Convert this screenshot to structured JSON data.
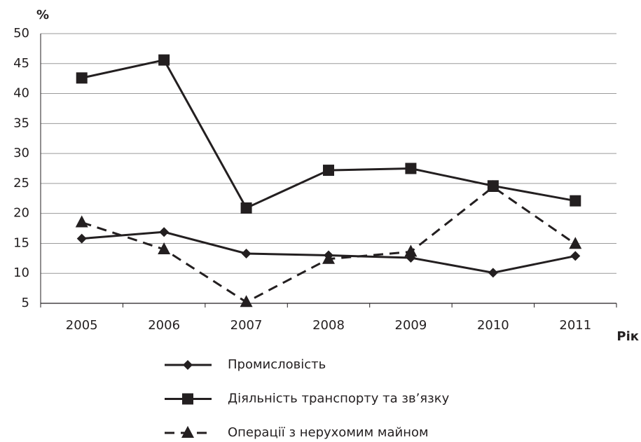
{
  "chart_data": {
    "type": "line",
    "y_axis_label": "%",
    "x_axis_label": "Рік",
    "categories": [
      "2005",
      "2006",
      "2007",
      "2008",
      "2009",
      "2010",
      "2011"
    ],
    "series": [
      {
        "name": "Промисловість",
        "color": "#231f20",
        "marker": "diamond",
        "dashed": false,
        "values": [
          15.8,
          16.9,
          13.3,
          13.0,
          12.6,
          10.1,
          12.9
        ]
      },
      {
        "name": "Діяльність транспорту та зв’язку",
        "color": "#231f20",
        "marker": "square",
        "dashed": false,
        "values": [
          42.6,
          45.6,
          20.9,
          27.2,
          27.5,
          24.6,
          22.1
        ]
      },
      {
        "name": "Операції з нерухомим майном",
        "color": "#231f20",
        "marker": "triangle",
        "dashed": true,
        "values": [
          18.5,
          14.0,
          5.2,
          12.4,
          13.6,
          24.4,
          14.9
        ]
      }
    ],
    "ylim": [
      5,
      50
    ],
    "yticks": [
      5,
      10,
      15,
      20,
      25,
      30,
      35,
      40,
      45,
      50
    ],
    "grid": true,
    "legend": "bottom"
  }
}
